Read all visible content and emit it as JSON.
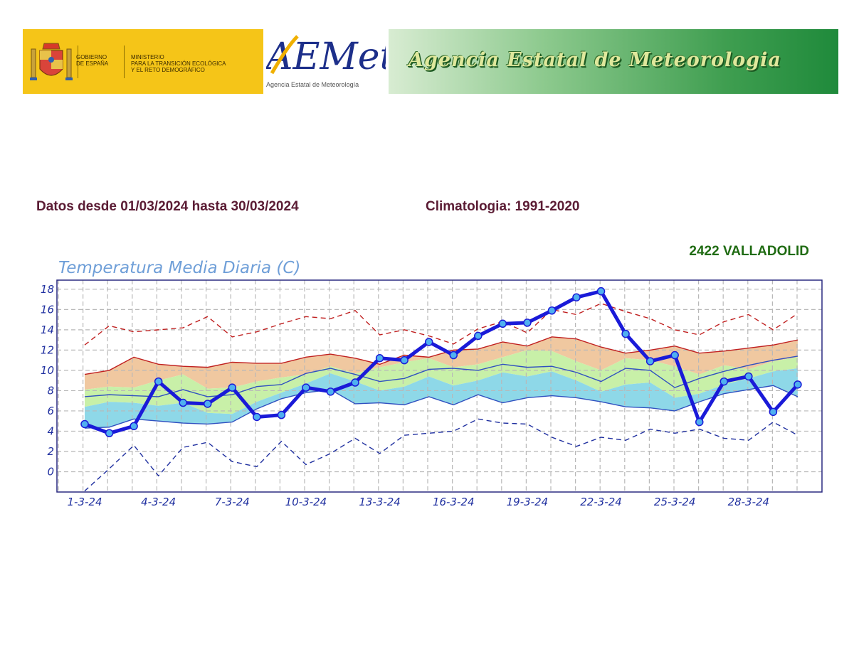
{
  "banner": {
    "gov_line1": "GOBIERNO",
    "gov_line2": "DE ESPAÑA",
    "ministry_line1": "MINISTERIO",
    "ministry_line2": "PARA LA TRANSICIÓN ECOLÓGICA",
    "ministry_line3": "Y EL RETO DEMOGRÁFICO",
    "aemet_logo_text": "AEMet",
    "aemet_subtitle": "Agencia Estatal de Meteorología",
    "agency_title": "Agencia Estatal de Meteorologia"
  },
  "header": {
    "period": "Datos desde 01/03/2024 hasta 30/03/2024",
    "climatology": "Climatologia: 1991-2020",
    "station": "2422  VALLADOLID"
  },
  "chart_data": {
    "type": "line",
    "title": "Temperatura Media Diaria (C)",
    "xlabel": "",
    "ylabel": "",
    "ylim": [
      -2,
      18.9
    ],
    "grid": true,
    "yticks": [
      18,
      16,
      14,
      12,
      10,
      8,
      6,
      4,
      2,
      0
    ],
    "xticks": [
      "1-3-24",
      "4-3-24",
      "7-3-24",
      "10-3-24",
      "13-3-24",
      "16-3-24",
      "19-3-24",
      "22-3-24",
      "25-3-24",
      "28-3-24"
    ],
    "colors": {
      "observed": "#1a1ad8",
      "marker_fill": "#4fb0f0",
      "max_line": "#c02020",
      "min_dashed": "#2030a0",
      "band_upper": "#f0c8a0",
      "band_mid_upper": "#c8f0a8",
      "band_mid_lower": "#8ed8e8",
      "median_line": "#3050c0",
      "grid": "#b8b8b8"
    },
    "series": [
      {
        "name": "",
        "role": "observed",
        "values": [
          4.7,
          3.8,
          4.5,
          8.9,
          6.8,
          6.7,
          8.3,
          5.4,
          5.6,
          8.3,
          7.9,
          8.8,
          11.2,
          11.0,
          12.8,
          11.5,
          13.4,
          14.6,
          14.7,
          15.9,
          17.2,
          17.8,
          13.6,
          10.9,
          11.5,
          4.9,
          8.9,
          9.4,
          5.9,
          8.6
        ]
      },
      {
        "name": "",
        "role": "max_dashed",
        "values": [
          12.5,
          14.4,
          13.8,
          14.0,
          14.2,
          15.3,
          13.3,
          13.8,
          14.6,
          15.3,
          15.1,
          15.9,
          13.5,
          14.0,
          13.4,
          12.6,
          14.1,
          14.8,
          13.7,
          16.0,
          15.5,
          16.6,
          15.8,
          15.1,
          14.0,
          13.5,
          14.8,
          15.5,
          14.0,
          15.6
        ]
      },
      {
        "name": "",
        "role": "max_line",
        "values": [
          9.6,
          10.0,
          11.3,
          10.6,
          10.4,
          10.3,
          10.8,
          10.7,
          10.7,
          11.3,
          11.6,
          11.2,
          10.6,
          11.5,
          11.3,
          12.0,
          12.1,
          12.8,
          12.4,
          13.3,
          13.1,
          12.3,
          11.7,
          12.0,
          12.4,
          11.7,
          11.9,
          12.2,
          12.5,
          13.0
        ]
      },
      {
        "name": "",
        "role": "upper_band",
        "values": [
          8.1,
          8.4,
          8.3,
          9.0,
          9.6,
          8.2,
          8.3,
          8.9,
          9.3,
          9.6,
          10.4,
          9.7,
          10.3,
          10.8,
          11.2,
          10.3,
          10.6,
          11.3,
          12.0,
          11.9,
          10.9,
          10.0,
          11.2,
          11.0,
          10.4,
          9.6,
          10.5,
          10.1,
          10.9,
          11.3
        ]
      },
      {
        "name": "",
        "role": "median_line",
        "values": [
          7.4,
          7.6,
          7.5,
          7.4,
          8.1,
          7.4,
          7.6,
          8.4,
          8.6,
          9.7,
          10.2,
          9.6,
          8.9,
          9.2,
          10.1,
          10.2,
          10.0,
          10.6,
          10.3,
          10.4,
          9.8,
          8.9,
          10.2,
          10.0,
          8.3,
          9.2,
          9.9,
          10.5,
          11.0,
          11.4
        ]
      },
      {
        "name": "",
        "role": "lower_band",
        "values": [
          6.4,
          6.9,
          6.8,
          6.5,
          6.8,
          5.8,
          5.7,
          6.9,
          7.8,
          8.7,
          9.7,
          8.9,
          8.0,
          8.4,
          9.4,
          8.5,
          9.0,
          9.8,
          9.4,
          9.9,
          9.0,
          7.9,
          8.6,
          8.8,
          7.3,
          7.7,
          8.6,
          9.2,
          9.9,
          10.2
        ]
      },
      {
        "name": "",
        "role": "lower_line",
        "values": [
          4.3,
          4.4,
          5.2,
          5.0,
          4.8,
          4.7,
          4.9,
          6.2,
          7.2,
          7.8,
          8.1,
          6.7,
          6.8,
          6.6,
          7.4,
          6.6,
          7.6,
          6.8,
          7.3,
          7.5,
          7.3,
          6.9,
          6.4,
          6.3,
          6.0,
          6.9,
          7.7,
          8.1,
          8.5,
          7.4
        ]
      },
      {
        "name": "",
        "role": "min_dashed",
        "values": [
          -1.9,
          0.3,
          2.6,
          -0.4,
          2.4,
          2.9,
          1.0,
          0.5,
          3.0,
          0.7,
          1.8,
          3.3,
          1.8,
          3.6,
          3.8,
          4.0,
          5.2,
          4.8,
          4.7,
          3.4,
          2.5,
          3.4,
          3.1,
          4.2,
          3.8,
          4.2,
          3.3,
          3.1,
          4.9,
          3.6
        ]
      }
    ]
  }
}
